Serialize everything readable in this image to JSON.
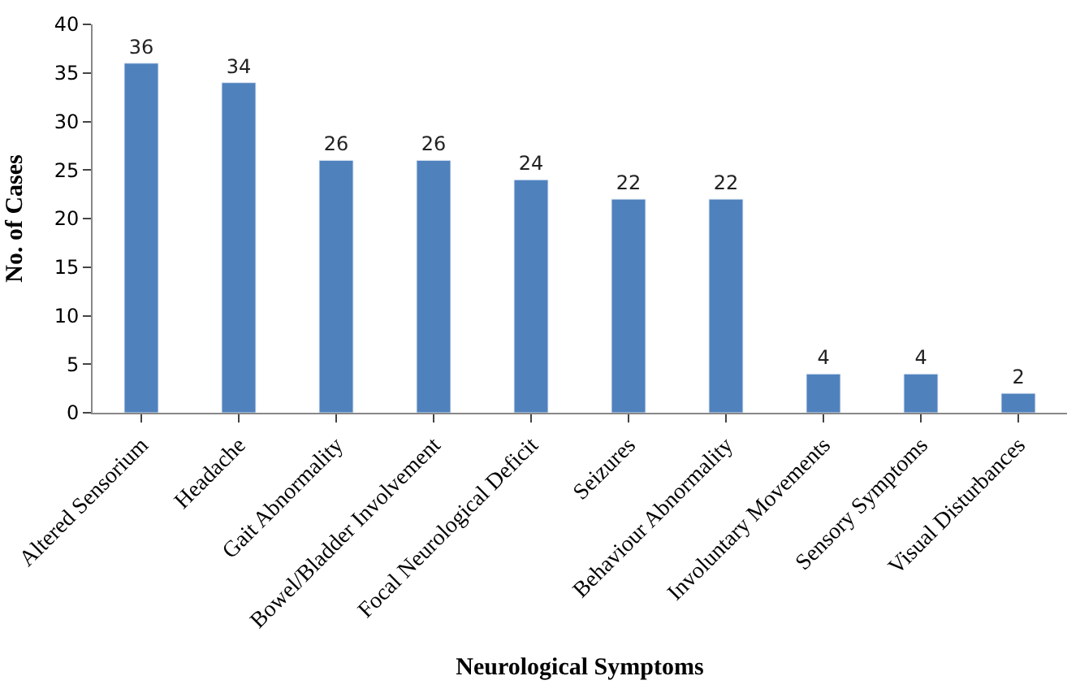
{
  "chart_data": {
    "type": "bar",
    "xlabel": "Neurological Symptoms",
    "ylabel": "No. of Cases",
    "categories": [
      "Altered Sensorium",
      "Headache",
      "Gait Abnormality",
      "Bowel/Bladder Involvement",
      "Focal Neurological Deficit",
      "Seizures",
      "Behaviour Abnormality",
      "Involuntary Movements",
      "Sensory Symptoms",
      "Visual Disturbances"
    ],
    "values": [
      36,
      34,
      26,
      26,
      24,
      22,
      22,
      4,
      4,
      2
    ],
    "color": "#4f81bd",
    "ylim": [
      0,
      40
    ],
    "yticks": [
      0,
      5,
      10,
      15,
      20,
      25,
      30,
      35,
      40
    ],
    "data_labels": true
  }
}
